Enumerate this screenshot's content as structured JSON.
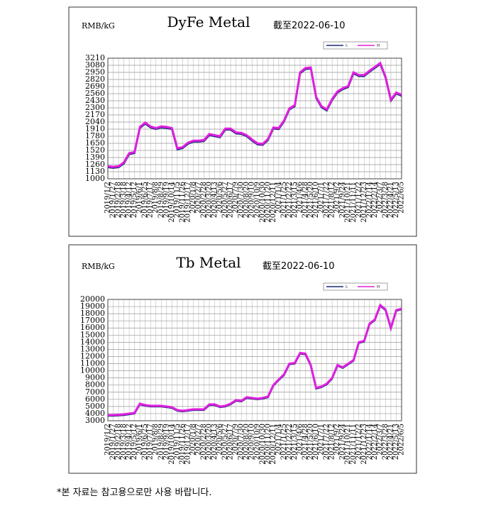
{
  "chart_data": [
    {
      "type": "line",
      "title": "DyFe Metal",
      "subtitle": "截至2022-06-10",
      "y_label": "RMB/kG",
      "categories": [
        "2019/1/2",
        "2019/1/27",
        "2019/2/18",
        "2019/3/18",
        "2019/4/12",
        "2019/5/12",
        "2019/6/1",
        "2019/6/25",
        "2019/7/17",
        "2019/8/8",
        "2019/8/29",
        "2019/9/19",
        "2019/10/14",
        "2019/11/5",
        "2019/11/26",
        "2019/12/17",
        "2020/1/8",
        "2020/2/7",
        "2020/2/28",
        "2020/3/20",
        "2020/4/13",
        "2020/5/6",
        "2020/5/27",
        "2020/6/17",
        "2020/7/9",
        "2020/7/30",
        "2020/8/20",
        "2020/9/10",
        "2020/10/9",
        "2020/10/30",
        "2020/11/20",
        "2020/12/11",
        "2021/1/4",
        "2021/1/25",
        "2021/2/22",
        "2021/3/15",
        "2021/4/6",
        "2021/4/28",
        "2021/5/20",
        "2021/6/10",
        "2021/7/1",
        "2021/7/22",
        "2021/8/12",
        "2021/9/2",
        "2021/9/24",
        "2021/10/21",
        "2021/11/11",
        "2021/12/2",
        "2021/12/23",
        "2022/1/14",
        "2022/2/14",
        "2022/3/7",
        "2022/3/28",
        "2022/4/21",
        "2022/5/13",
        "2022/6/5"
      ],
      "series": [
        {
          "name": "L",
          "color": "#1f2a7a",
          "values": [
            1210,
            1200,
            1210,
            1280,
            1450,
            1470,
            1930,
            2010,
            1940,
            1910,
            1940,
            1930,
            1910,
            1540,
            1560,
            1640,
            1680,
            1680,
            1690,
            1800,
            1780,
            1760,
            1900,
            1900,
            1830,
            1820,
            1780,
            1700,
            1630,
            1620,
            1710,
            1920,
            1910,
            2050,
            2270,
            2330,
            2930,
            3010,
            3020,
            2480,
            2310,
            2250,
            2440,
            2580,
            2640,
            2680,
            2930,
            2880,
            2880,
            2960,
            3030,
            3100,
            2850,
            2430,
            2560,
            2520
          ]
        },
        {
          "name": "H",
          "color": "#e020e0",
          "values": [
            1230,
            1220,
            1230,
            1300,
            1470,
            1490,
            1950,
            2030,
            1960,
            1930,
            1960,
            1950,
            1930,
            1560,
            1580,
            1660,
            1700,
            1700,
            1710,
            1820,
            1800,
            1780,
            1920,
            1920,
            1850,
            1840,
            1800,
            1720,
            1650,
            1640,
            1730,
            1940,
            1930,
            2070,
            2290,
            2350,
            2950,
            3030,
            3040,
            2500,
            2330,
            2270,
            2460,
            2600,
            2660,
            2700,
            2950,
            2900,
            2900,
            2980,
            3050,
            3120,
            2870,
            2450,
            2580,
            2540
          ]
        }
      ],
      "ylim": [
        1000,
        3210
      ],
      "yticks": [
        1000,
        1130,
        1260,
        1390,
        1520,
        1650,
        1780,
        1910,
        2040,
        2170,
        2300,
        2430,
        2560,
        2690,
        2820,
        2950,
        3080,
        3210
      ],
      "grid": true,
      "legend": "top-right"
    },
    {
      "type": "line",
      "title": "Tb Metal",
      "subtitle": "截至2022-06-10",
      "y_label": "RMB/kG",
      "categories": [
        "2019/1/2",
        "2019/1/27",
        "2019/2/18",
        "2019/3/18",
        "2019/4/12",
        "2019/5/12",
        "2019/6/1",
        "2019/6/25",
        "2019/7/17",
        "2019/8/8",
        "2019/8/29",
        "2019/9/19",
        "2019/10/14",
        "2019/11/5",
        "2019/11/26",
        "2019/12/17",
        "2020/1/8",
        "2020/2/7",
        "2020/2/28",
        "2020/3/20",
        "2020/4/13",
        "2020/5/6",
        "2020/5/27",
        "2020/6/17",
        "2020/7/9",
        "2020/7/30",
        "2020/8/20",
        "2020/9/10",
        "2020/10/9",
        "2020/10/30",
        "2020/11/20",
        "2020/12/11",
        "2021/1/4",
        "2021/1/25",
        "2021/2/22",
        "2021/3/15",
        "2021/4/6",
        "2021/4/28",
        "2021/5/20",
        "2021/6/10",
        "2021/7/1",
        "2021/7/22",
        "2021/8/12",
        "2021/9/2",
        "2021/9/24",
        "2021/10/21",
        "2021/11/11",
        "2021/12/2",
        "2021/12/23",
        "2022/1/14",
        "2022/2/14",
        "2022/3/7",
        "2022/3/28",
        "2022/4/21",
        "2022/5/13",
        "2022/6/5"
      ],
      "series": [
        {
          "name": "L",
          "color": "#1f2a7a",
          "values": [
            3700,
            3700,
            3750,
            3800,
            3900,
            4000,
            5300,
            5100,
            5000,
            5000,
            5000,
            4900,
            4800,
            4400,
            4300,
            4400,
            4500,
            4500,
            4500,
            5200,
            5200,
            4900,
            5000,
            5300,
            5800,
            5700,
            6200,
            6100,
            6000,
            6100,
            6300,
            7900,
            8700,
            9400,
            10900,
            11000,
            12400,
            12300,
            10700,
            7500,
            7700,
            8100,
            8900,
            10700,
            10400,
            10900,
            11400,
            13900,
            14100,
            16500,
            17100,
            19100,
            18500,
            15900,
            18400,
            18600
          ]
        },
        {
          "name": "H",
          "color": "#e020e0",
          "values": [
            3800,
            3800,
            3850,
            3900,
            4000,
            4100,
            5400,
            5200,
            5100,
            5100,
            5100,
            5000,
            4900,
            4500,
            4400,
            4500,
            4600,
            4600,
            4600,
            5300,
            5300,
            5000,
            5100,
            5400,
            5900,
            5800,
            6300,
            6200,
            6100,
            6200,
            6400,
            8000,
            8800,
            9500,
            11000,
            11100,
            12500,
            12400,
            10800,
            7600,
            7800,
            8200,
            9000,
            10800,
            10500,
            11000,
            11500,
            14000,
            14200,
            16600,
            17200,
            19200,
            18600,
            16000,
            18500,
            18700
          ]
        }
      ],
      "ylim": [
        3000,
        20000
      ],
      "yticks": [
        3000,
        4000,
        5000,
        6000,
        7000,
        8000,
        9000,
        10000,
        11000,
        12000,
        13000,
        14000,
        15000,
        16000,
        17000,
        18000,
        19000,
        20000
      ],
      "grid": true,
      "legend": "top-right"
    }
  ],
  "footnote": "*본 자료는 참고용으로만 사용 바랍니다."
}
